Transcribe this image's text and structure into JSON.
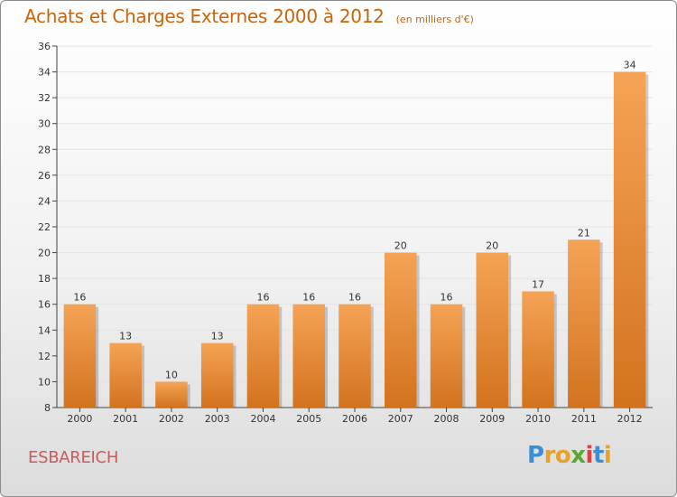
{
  "header": {
    "title": "Achats et Charges Externes 2000 à 2012",
    "subtitle": "(en milliers d'€)"
  },
  "footer": {
    "commune": "ESBAREICH",
    "brand": [
      "P",
      "r",
      "o",
      "x",
      "i",
      "t",
      "i"
    ],
    "brand_colors": [
      "#3a8ed4",
      "#e8a22a",
      "#e8a22a",
      "#5aa832",
      "#e04040",
      "#3a8ed4",
      "#e8a22a"
    ]
  },
  "colors": {
    "bar_top": "#f5a356",
    "bar_bottom": "#d2731e",
    "text": "#333333",
    "grid": "#e4e4e4"
  },
  "chart_data": {
    "type": "bar",
    "categories": [
      "2000",
      "2001",
      "2002",
      "2003",
      "2004",
      "2005",
      "2006",
      "2007",
      "2008",
      "2009",
      "2010",
      "2011",
      "2012"
    ],
    "values": [
      16,
      13,
      10,
      13,
      16,
      16,
      16,
      20,
      16,
      20,
      17,
      21,
      34
    ],
    "ylim": [
      8,
      36
    ],
    "yticks": [
      8,
      10,
      12,
      14,
      16,
      18,
      20,
      22,
      24,
      26,
      28,
      30,
      32,
      34,
      36
    ],
    "title": "Achats et Charges Externes 2000 à 2012",
    "subtitle": "(en milliers d'€)",
    "grid": true
  }
}
